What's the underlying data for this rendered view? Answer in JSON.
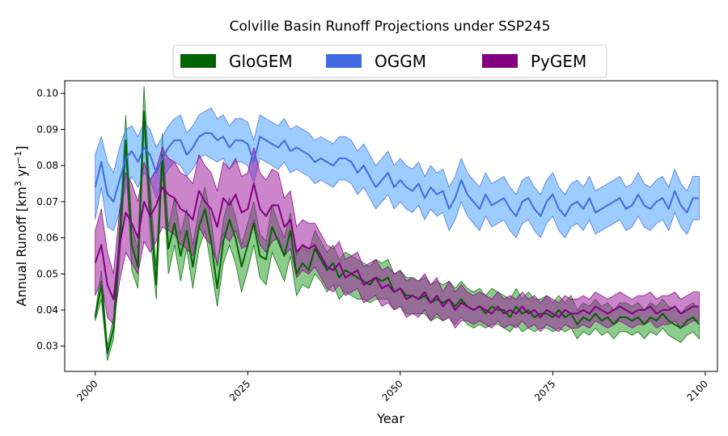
{
  "chart_data": {
    "type": "area",
    "title": "Colville Basin Runoff Projections under SSP245",
    "xlabel": "Year",
    "ylabel_main": "Annual Runoff [km",
    "ylabel_sup1": "3",
    "ylabel_mid": " yr",
    "ylabel_sup2": "−1",
    "ylabel_end": "]",
    "xlim": [
      1995,
      2102
    ],
    "ylim": [
      0.023,
      0.1035
    ],
    "xticks": [
      2000,
      2025,
      2050,
      2075,
      2100
    ],
    "xtick_labels": [
      "2000",
      "2025",
      "2050",
      "2075",
      "2100"
    ],
    "yticks": [
      0.03,
      0.04,
      0.05,
      0.06,
      0.07,
      0.08,
      0.09,
      0.1
    ],
    "ytick_labels": [
      "0.03",
      "0.04",
      "0.05",
      "0.06",
      "0.07",
      "0.08",
      "0.09",
      "0.10"
    ],
    "legend_position": "top-center",
    "x_start": 2000,
    "series": [
      {
        "name": "GloGEM",
        "line_color": "#006400",
        "fill_color": "#2ca02c",
        "legend_color": "#006400",
        "mean": [
          0.038,
          0.047,
          0.028,
          0.035,
          0.059,
          0.087,
          0.058,
          0.052,
          0.095,
          0.068,
          0.047,
          0.083,
          0.057,
          0.064,
          0.055,
          0.062,
          0.052,
          0.063,
          0.068,
          0.059,
          0.046,
          0.059,
          0.065,
          0.06,
          0.052,
          0.058,
          0.064,
          0.055,
          0.054,
          0.063,
          0.059,
          0.055,
          0.062,
          0.05,
          0.053,
          0.051,
          0.057,
          0.054,
          0.051,
          0.053,
          0.049,
          0.051,
          0.05,
          0.049,
          0.048,
          0.047,
          0.049,
          0.048,
          0.049,
          0.045,
          0.046,
          0.044,
          0.044,
          0.043,
          0.044,
          0.042,
          0.043,
          0.042,
          0.043,
          0.041,
          0.043,
          0.041,
          0.04,
          0.041,
          0.039,
          0.041,
          0.04,
          0.04,
          0.038,
          0.041,
          0.039,
          0.04,
          0.038,
          0.039,
          0.039,
          0.038,
          0.04,
          0.038,
          0.039,
          0.036,
          0.038,
          0.037,
          0.039,
          0.037,
          0.038,
          0.036,
          0.038,
          0.038,
          0.037,
          0.038,
          0.036,
          0.038,
          0.037,
          0.039,
          0.037,
          0.036,
          0.035,
          0.037,
          0.038,
          0.036
        ],
        "lower": [
          0.037,
          0.043,
          0.026,
          0.032,
          0.053,
          0.082,
          0.051,
          0.046,
          0.09,
          0.061,
          0.043,
          0.079,
          0.05,
          0.058,
          0.048,
          0.057,
          0.046,
          0.057,
          0.062,
          0.052,
          0.041,
          0.053,
          0.058,
          0.053,
          0.045,
          0.051,
          0.058,
          0.049,
          0.047,
          0.056,
          0.052,
          0.048,
          0.055,
          0.044,
          0.047,
          0.046,
          0.05,
          0.048,
          0.045,
          0.047,
          0.043,
          0.045,
          0.044,
          0.043,
          0.043,
          0.042,
          0.043,
          0.043,
          0.043,
          0.04,
          0.041,
          0.039,
          0.039,
          0.039,
          0.039,
          0.037,
          0.038,
          0.037,
          0.038,
          0.036,
          0.038,
          0.036,
          0.035,
          0.036,
          0.035,
          0.036,
          0.036,
          0.035,
          0.034,
          0.036,
          0.034,
          0.035,
          0.034,
          0.035,
          0.035,
          0.034,
          0.035,
          0.034,
          0.035,
          0.032,
          0.034,
          0.033,
          0.035,
          0.033,
          0.034,
          0.032,
          0.034,
          0.034,
          0.033,
          0.034,
          0.032,
          0.034,
          0.033,
          0.035,
          0.033,
          0.032,
          0.031,
          0.033,
          0.034,
          0.032
        ],
        "upper": [
          0.039,
          0.051,
          0.03,
          0.038,
          0.064,
          0.094,
          0.063,
          0.057,
          0.102,
          0.074,
          0.052,
          0.089,
          0.063,
          0.071,
          0.061,
          0.068,
          0.058,
          0.068,
          0.074,
          0.065,
          0.052,
          0.065,
          0.071,
          0.066,
          0.058,
          0.064,
          0.07,
          0.061,
          0.059,
          0.069,
          0.064,
          0.06,
          0.067,
          0.055,
          0.058,
          0.056,
          0.062,
          0.059,
          0.056,
          0.058,
          0.054,
          0.056,
          0.055,
          0.054,
          0.053,
          0.052,
          0.054,
          0.053,
          0.054,
          0.05,
          0.051,
          0.049,
          0.049,
          0.048,
          0.049,
          0.047,
          0.048,
          0.047,
          0.048,
          0.046,
          0.048,
          0.046,
          0.045,
          0.046,
          0.044,
          0.046,
          0.045,
          0.044,
          0.043,
          0.046,
          0.043,
          0.045,
          0.043,
          0.043,
          0.044,
          0.042,
          0.044,
          0.042,
          0.044,
          0.04,
          0.042,
          0.041,
          0.043,
          0.041,
          0.042,
          0.04,
          0.042,
          0.042,
          0.041,
          0.042,
          0.04,
          0.042,
          0.041,
          0.043,
          0.041,
          0.04,
          0.039,
          0.041,
          0.042,
          0.04
        ]
      },
      {
        "name": "OGGM",
        "line_color": "#4169e1",
        "fill_color": "#4da3ff",
        "legend_color": "#4169e1",
        "mean": [
          0.074,
          0.081,
          0.072,
          0.07,
          0.076,
          0.082,
          0.084,
          0.081,
          0.085,
          0.083,
          0.078,
          0.082,
          0.085,
          0.087,
          0.087,
          0.083,
          0.085,
          0.088,
          0.089,
          0.089,
          0.087,
          0.088,
          0.085,
          0.087,
          0.087,
          0.086,
          0.081,
          0.088,
          0.087,
          0.086,
          0.085,
          0.087,
          0.084,
          0.085,
          0.084,
          0.083,
          0.081,
          0.082,
          0.081,
          0.08,
          0.082,
          0.082,
          0.081,
          0.078,
          0.08,
          0.077,
          0.074,
          0.076,
          0.078,
          0.074,
          0.076,
          0.074,
          0.073,
          0.075,
          0.071,
          0.074,
          0.072,
          0.073,
          0.068,
          0.071,
          0.076,
          0.072,
          0.07,
          0.068,
          0.072,
          0.069,
          0.07,
          0.071,
          0.068,
          0.066,
          0.07,
          0.071,
          0.068,
          0.066,
          0.07,
          0.072,
          0.068,
          0.066,
          0.069,
          0.07,
          0.068,
          0.071,
          0.067,
          0.068,
          0.069,
          0.07,
          0.071,
          0.068,
          0.069,
          0.072,
          0.069,
          0.068,
          0.07,
          0.071,
          0.068,
          0.073,
          0.069,
          0.067,
          0.071,
          0.071
        ],
        "lower": [
          0.065,
          0.074,
          0.063,
          0.062,
          0.067,
          0.074,
          0.077,
          0.074,
          0.078,
          0.076,
          0.071,
          0.076,
          0.079,
          0.081,
          0.08,
          0.077,
          0.079,
          0.082,
          0.083,
          0.082,
          0.081,
          0.082,
          0.079,
          0.081,
          0.081,
          0.08,
          0.075,
          0.082,
          0.081,
          0.08,
          0.079,
          0.081,
          0.078,
          0.079,
          0.078,
          0.077,
          0.075,
          0.076,
          0.075,
          0.074,
          0.076,
          0.076,
          0.075,
          0.072,
          0.074,
          0.071,
          0.068,
          0.07,
          0.072,
          0.068,
          0.07,
          0.068,
          0.067,
          0.069,
          0.065,
          0.068,
          0.066,
          0.067,
          0.062,
          0.065,
          0.07,
          0.066,
          0.064,
          0.062,
          0.066,
          0.063,
          0.064,
          0.065,
          0.062,
          0.06,
          0.064,
          0.065,
          0.062,
          0.06,
          0.064,
          0.066,
          0.062,
          0.06,
          0.063,
          0.064,
          0.062,
          0.065,
          0.061,
          0.062,
          0.063,
          0.064,
          0.065,
          0.062,
          0.063,
          0.066,
          0.063,
          0.062,
          0.064,
          0.065,
          0.062,
          0.067,
          0.063,
          0.061,
          0.065,
          0.065
        ],
        "upper": [
          0.083,
          0.088,
          0.081,
          0.078,
          0.085,
          0.09,
          0.091,
          0.088,
          0.092,
          0.09,
          0.085,
          0.088,
          0.091,
          0.093,
          0.094,
          0.089,
          0.091,
          0.094,
          0.095,
          0.096,
          0.093,
          0.094,
          0.091,
          0.093,
          0.093,
          0.092,
          0.087,
          0.094,
          0.093,
          0.092,
          0.091,
          0.093,
          0.09,
          0.091,
          0.09,
          0.089,
          0.087,
          0.088,
          0.087,
          0.086,
          0.088,
          0.088,
          0.087,
          0.084,
          0.086,
          0.083,
          0.08,
          0.082,
          0.084,
          0.08,
          0.082,
          0.08,
          0.079,
          0.081,
          0.077,
          0.08,
          0.078,
          0.079,
          0.074,
          0.077,
          0.082,
          0.078,
          0.076,
          0.074,
          0.078,
          0.075,
          0.076,
          0.077,
          0.074,
          0.072,
          0.076,
          0.077,
          0.074,
          0.072,
          0.076,
          0.078,
          0.074,
          0.072,
          0.075,
          0.076,
          0.074,
          0.077,
          0.073,
          0.074,
          0.075,
          0.076,
          0.077,
          0.074,
          0.075,
          0.078,
          0.075,
          0.074,
          0.076,
          0.077,
          0.074,
          0.079,
          0.075,
          0.073,
          0.077,
          0.077
        ]
      },
      {
        "name": "PyGEM",
        "line_color": "#800080",
        "fill_color": "#a020a0",
        "legend_color": "#800080",
        "mean": [
          0.053,
          0.058,
          0.047,
          0.043,
          0.058,
          0.067,
          0.064,
          0.06,
          0.07,
          0.066,
          0.069,
          0.074,
          0.072,
          0.071,
          0.068,
          0.067,
          0.065,
          0.073,
          0.07,
          0.068,
          0.063,
          0.071,
          0.069,
          0.072,
          0.067,
          0.068,
          0.075,
          0.068,
          0.066,
          0.069,
          0.069,
          0.063,
          0.065,
          0.056,
          0.058,
          0.057,
          0.058,
          0.055,
          0.052,
          0.051,
          0.053,
          0.049,
          0.05,
          0.051,
          0.047,
          0.048,
          0.049,
          0.046,
          0.047,
          0.045,
          0.046,
          0.043,
          0.044,
          0.043,
          0.045,
          0.042,
          0.044,
          0.041,
          0.043,
          0.04,
          0.042,
          0.041,
          0.04,
          0.041,
          0.04,
          0.039,
          0.041,
          0.039,
          0.04,
          0.039,
          0.041,
          0.039,
          0.04,
          0.038,
          0.04,
          0.039,
          0.038,
          0.04,
          0.039,
          0.039,
          0.04,
          0.039,
          0.041,
          0.04,
          0.039,
          0.04,
          0.041,
          0.04,
          0.039,
          0.04,
          0.04,
          0.041,
          0.039,
          0.04,
          0.04,
          0.041,
          0.039,
          0.04,
          0.041,
          0.041
        ],
        "lower": [
          0.044,
          0.048,
          0.038,
          0.036,
          0.048,
          0.056,
          0.053,
          0.05,
          0.059,
          0.056,
          0.059,
          0.063,
          0.062,
          0.061,
          0.058,
          0.057,
          0.055,
          0.063,
          0.06,
          0.058,
          0.053,
          0.061,
          0.059,
          0.062,
          0.057,
          0.058,
          0.065,
          0.058,
          0.056,
          0.059,
          0.06,
          0.055,
          0.057,
          0.049,
          0.051,
          0.05,
          0.052,
          0.049,
          0.046,
          0.045,
          0.047,
          0.044,
          0.045,
          0.046,
          0.042,
          0.043,
          0.044,
          0.041,
          0.042,
          0.04,
          0.041,
          0.038,
          0.039,
          0.038,
          0.04,
          0.037,
          0.039,
          0.037,
          0.038,
          0.035,
          0.037,
          0.037,
          0.036,
          0.037,
          0.036,
          0.035,
          0.037,
          0.035,
          0.036,
          0.035,
          0.037,
          0.035,
          0.036,
          0.034,
          0.036,
          0.035,
          0.034,
          0.036,
          0.035,
          0.035,
          0.036,
          0.035,
          0.037,
          0.036,
          0.035,
          0.036,
          0.037,
          0.036,
          0.035,
          0.036,
          0.036,
          0.037,
          0.035,
          0.036,
          0.036,
          0.037,
          0.035,
          0.036,
          0.037,
          0.037
        ],
        "upper": [
          0.062,
          0.068,
          0.056,
          0.05,
          0.068,
          0.078,
          0.075,
          0.07,
          0.081,
          0.076,
          0.079,
          0.085,
          0.082,
          0.081,
          0.078,
          0.077,
          0.075,
          0.083,
          0.08,
          0.078,
          0.073,
          0.081,
          0.079,
          0.082,
          0.077,
          0.078,
          0.085,
          0.078,
          0.076,
          0.079,
          0.078,
          0.071,
          0.073,
          0.063,
          0.065,
          0.064,
          0.064,
          0.061,
          0.058,
          0.057,
          0.059,
          0.054,
          0.055,
          0.056,
          0.052,
          0.053,
          0.054,
          0.051,
          0.052,
          0.05,
          0.051,
          0.048,
          0.049,
          0.048,
          0.05,
          0.047,
          0.049,
          0.045,
          0.048,
          0.045,
          0.047,
          0.045,
          0.044,
          0.045,
          0.044,
          0.043,
          0.045,
          0.043,
          0.044,
          0.043,
          0.045,
          0.043,
          0.044,
          0.042,
          0.044,
          0.043,
          0.042,
          0.044,
          0.043,
          0.043,
          0.044,
          0.043,
          0.045,
          0.044,
          0.043,
          0.044,
          0.045,
          0.044,
          0.043,
          0.044,
          0.044,
          0.045,
          0.043,
          0.044,
          0.044,
          0.045,
          0.043,
          0.044,
          0.045,
          0.045
        ]
      }
    ]
  }
}
